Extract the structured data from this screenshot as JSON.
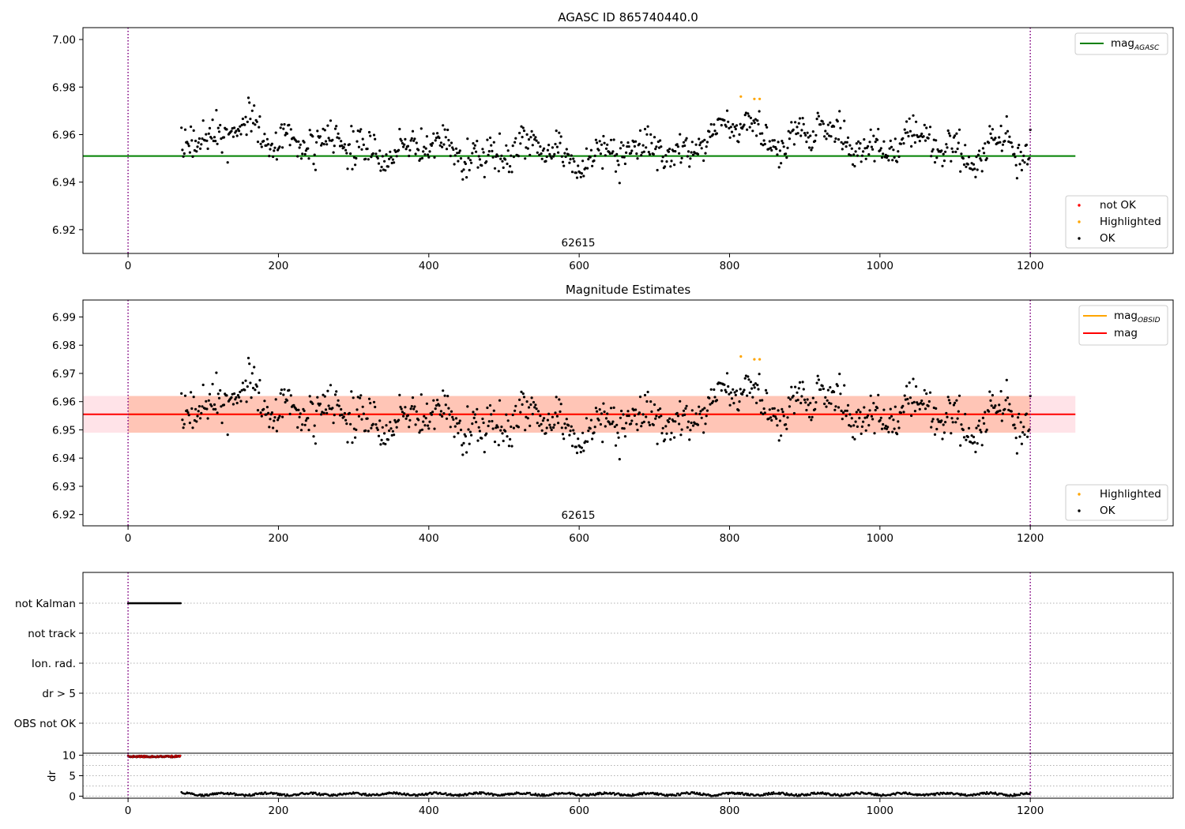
{
  "figure": {
    "colors": {
      "ok": "#000000",
      "highlighted": "#ffa500",
      "not_ok": "#ff0000",
      "agasc_line": "#008000",
      "mag_line": "#ff0000",
      "obsid_line": "#ffa500",
      "band_pink": "#ffc0cb",
      "band_orange": "#ffa07a",
      "vline": "#800080"
    },
    "obsid_label": "62615",
    "obs_start": 0,
    "obs_end": 1200
  },
  "chart_data": [
    {
      "type": "scatter",
      "title": "AGASC ID 865740440.0",
      "xlim": [
        -60,
        1390
      ],
      "ylim": [
        6.91,
        7.005
      ],
      "x_ticks": [
        0,
        200,
        400,
        600,
        800,
        1000,
        1200
      ],
      "y_ticks": [
        6.92,
        6.94,
        6.96,
        6.98,
        7.0
      ],
      "y_tick_labels": [
        "6.92",
        "6.94",
        "6.96",
        "6.98",
        "7.00"
      ],
      "annotation": "62615",
      "grid": false,
      "lines": [
        {
          "label": "mag",
          "label_sub": "AGASC",
          "y": 6.951,
          "x_range": [
            -60,
            1260
          ],
          "color": "#008000"
        }
      ],
      "series": [
        {
          "name": "not OK",
          "color": "#ff0000",
          "points": []
        },
        {
          "name": "Highlighted",
          "color": "#ffa500",
          "points": [
            [
              815,
              6.976
            ],
            [
              833,
              6.975
            ],
            [
              840,
              6.975
            ]
          ]
        },
        {
          "name": "OK",
          "color": "#000000",
          "points": [],
          "generated": {
            "x_range": [
              71,
              1200
            ],
            "n": 900,
            "mean": 6.955,
            "spread": 0.009,
            "seed": 865740440
          }
        }
      ],
      "legend": [
        "mag_AGASC"
      ],
      "legend_placement": "upper right",
      "series_legend": [
        "not OK",
        "Highlighted",
        "OK"
      ],
      "series_legend_placement": "lower right"
    },
    {
      "type": "scatter",
      "title": "Magnitude Estimates",
      "xlim": [
        -60,
        1390
      ],
      "ylim": [
        6.916,
        6.996
      ],
      "x_ticks": [
        0,
        200,
        400,
        600,
        800,
        1000,
        1200
      ],
      "y_ticks": [
        6.92,
        6.93,
        6.94,
        6.95,
        6.96,
        6.97,
        6.98,
        6.99
      ],
      "y_tick_labels": [
        "6.92",
        "6.93",
        "6.94",
        "6.95",
        "6.96",
        "6.97",
        "6.98",
        "6.99"
      ],
      "annotation": "62615",
      "grid": false,
      "lines": [
        {
          "label": "mag",
          "label_sub": "OBSID",
          "y": 6.9555,
          "x_range": [
            0,
            1200
          ],
          "color": "#ffa500"
        },
        {
          "label": "mag",
          "label_sub": "",
          "y": 6.9555,
          "x_range": [
            -60,
            1260
          ],
          "color": "#ff0000"
        }
      ],
      "bands": [
        {
          "y": [
            6.949,
            6.962
          ],
          "x_range": [
            -60,
            1260
          ],
          "color": "#ffc0cb"
        },
        {
          "y": [
            6.949,
            6.962
          ],
          "x_range": [
            0,
            1200
          ],
          "color": "#ffa07a"
        }
      ],
      "series": [
        {
          "name": "Highlighted",
          "color": "#ffa500",
          "points": [
            [
              815,
              6.976
            ],
            [
              833,
              6.975
            ],
            [
              840,
              6.975
            ]
          ]
        },
        {
          "name": "OK",
          "color": "#000000",
          "points": [],
          "generated": "same as panel 1"
        }
      ],
      "legend": [
        "mag_OBSID",
        "mag"
      ],
      "legend_placement": "upper right",
      "series_legend": [
        "Highlighted",
        "OK"
      ],
      "series_legend_placement": "lower right"
    },
    {
      "type": "scatter",
      "title": "",
      "xlim": [
        -60,
        1390
      ],
      "categories": [
        "not Kalman",
        "not track",
        "Ion. rad.",
        "dr > 5",
        "OBS not OK"
      ],
      "flag_ranges": [
        {
          "category": "not Kalman",
          "x_range": [
            0,
            70
          ],
          "color": "#000000"
        }
      ],
      "grid": "horizontal dotted"
    },
    {
      "type": "scatter",
      "title": "",
      "ylabel": "dr",
      "xlim": [
        -60,
        1390
      ],
      "ylim": [
        -0.5,
        10.5
      ],
      "x_ticks": [
        0,
        200,
        400,
        600,
        800,
        1000,
        1200
      ],
      "y_ticks": [
        0,
        5,
        10
      ],
      "y_tick_labels": [
        "0",
        "5",
        "10"
      ],
      "series": [
        {
          "name": "dr (not OK)",
          "color": "#ff0000",
          "x_range": [
            0,
            70
          ],
          "value": 9.7
        },
        {
          "name": "dr",
          "color": "#000000",
          "x_range": [
            71,
            1200
          ],
          "mean": 0.5,
          "spread": 0.25
        }
      ],
      "grid": "horizontal dotted"
    }
  ]
}
